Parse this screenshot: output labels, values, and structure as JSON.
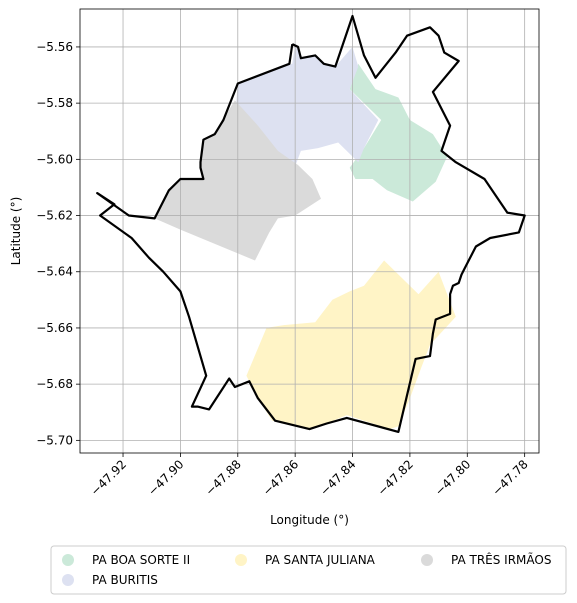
{
  "chart_data": {
    "type": "map",
    "xlabel": "Longitude (°)",
    "ylabel": "Latitude (°)",
    "xlim": [
      -47.935,
      -47.775
    ],
    "ylim": [
      -5.7045,
      -5.5465
    ],
    "xticks": [
      -47.92,
      -47.9,
      -47.88,
      -47.86,
      -47.84,
      -47.82,
      -47.8,
      -47.78
    ],
    "xtick_labels": [
      "−47.92",
      "−47.90",
      "−47.88",
      "−47.86",
      "−47.84",
      "−47.82",
      "−47.80",
      "−47.78"
    ],
    "yticks": [
      -5.56,
      -5.58,
      -5.6,
      -5.62,
      -5.64,
      -5.66,
      -5.68,
      -5.7
    ],
    "ytick_labels": [
      "−5.56",
      "−5.58",
      "−5.60",
      "−5.62",
      "−5.64",
      "−5.66",
      "−5.68",
      "−5.70"
    ],
    "grid": true,
    "legend_position": "bottom",
    "legend": [
      {
        "label": "PA BOA SORTE II",
        "color": "#cbe9d9"
      },
      {
        "label": "PA BURITIS",
        "color": "#dde1f1"
      },
      {
        "label": "PA SANTA JULIANA",
        "color": "#fff4c6"
      },
      {
        "label": "PA TRÊS IRMÃOS",
        "color": "#dadada"
      }
    ],
    "boundary": {
      "name": "municipality outline",
      "color": "#000000",
      "points": [
        [
          -47.861,
          -5.559
        ],
        [
          -47.859,
          -5.56
        ],
        [
          -47.858,
          -5.564
        ],
        [
          -47.853,
          -5.563
        ],
        [
          -47.85,
          -5.566
        ],
        [
          -47.846,
          -5.567
        ],
        [
          -47.84,
          -5.549
        ],
        [
          -47.836,
          -5.563
        ],
        [
          -47.832,
          -5.571
        ],
        [
          -47.825,
          -5.562
        ],
        [
          -47.821,
          -5.556
        ],
        [
          -47.813,
          -5.553
        ],
        [
          -47.81,
          -5.556
        ],
        [
          -47.808,
          -5.562
        ],
        [
          -47.803,
          -5.565
        ],
        [
          -47.812,
          -5.576
        ],
        [
          -47.806,
          -5.588
        ],
        [
          -47.809,
          -5.597
        ],
        [
          -47.804,
          -5.601
        ],
        [
          -47.794,
          -5.607
        ],
        [
          -47.786,
          -5.619
        ],
        [
          -47.78,
          -5.62
        ],
        [
          -47.782,
          -5.626
        ],
        [
          -47.792,
          -5.628
        ],
        [
          -47.797,
          -5.631
        ],
        [
          -47.801,
          -5.639
        ],
        [
          -47.802,
          -5.641
        ],
        [
          -47.803,
          -5.644
        ],
        [
          -47.805,
          -5.645
        ],
        [
          -47.806,
          -5.648
        ],
        [
          -47.806,
          -5.655
        ],
        [
          -47.811,
          -5.657
        ],
        [
          -47.812,
          -5.662
        ],
        [
          -47.813,
          -5.67
        ],
        [
          -47.818,
          -5.671
        ],
        [
          -47.821,
          -5.684
        ],
        [
          -47.824,
          -5.697
        ],
        [
          -47.842,
          -5.692
        ],
        [
          -47.849,
          -5.694
        ],
        [
          -47.855,
          -5.696
        ],
        [
          -47.867,
          -5.693
        ],
        [
          -47.87,
          -5.689
        ],
        [
          -47.873,
          -5.685
        ],
        [
          -47.876,
          -5.679
        ],
        [
          -47.881,
          -5.681
        ],
        [
          -47.883,
          -5.678
        ],
        [
          -47.89,
          -5.689
        ],
        [
          -47.894,
          -5.688
        ],
        [
          -47.896,
          -5.688
        ],
        [
          -47.891,
          -5.677
        ],
        [
          -47.897,
          -5.656
        ],
        [
          -47.9,
          -5.647
        ],
        [
          -47.906,
          -5.64
        ],
        [
          -47.911,
          -5.635
        ],
        [
          -47.917,
          -5.628
        ],
        [
          -47.928,
          -5.62
        ],
        [
          -47.928,
          -5.62
        ],
        [
          -47.923,
          -5.616
        ],
        [
          -47.929,
          -5.612
        ],
        [
          -47.918,
          -5.62
        ],
        [
          -47.909,
          -5.621
        ],
        [
          -47.904,
          -5.611
        ],
        [
          -47.9,
          -5.607
        ],
        [
          -47.892,
          -5.607
        ],
        [
          -47.893,
          -5.603
        ],
        [
          -47.893,
          -5.601
        ],
        [
          -47.892,
          -5.593
        ],
        [
          -47.888,
          -5.591
        ],
        [
          -47.885,
          -5.586
        ],
        [
          -47.88,
          -5.573
        ],
        [
          -47.862,
          -5.566
        ],
        [
          -47.861,
          -5.559
        ]
      ]
    },
    "regions": [
      {
        "name": "PA BOA SORTE II",
        "color": "#cbe9d9",
        "points": [
          [
            -47.838,
            -5.566
          ],
          [
            -47.832,
            -5.575
          ],
          [
            -47.824,
            -5.578
          ],
          [
            -47.82,
            -5.586
          ],
          [
            -47.812,
            -5.591
          ],
          [
            -47.807,
            -5.599
          ],
          [
            -47.811,
            -5.608
          ],
          [
            -47.819,
            -5.615
          ],
          [
            -47.828,
            -5.611
          ],
          [
            -47.833,
            -5.607
          ],
          [
            -47.839,
            -5.607
          ],
          [
            -47.841,
            -5.603
          ],
          [
            -47.836,
            -5.596
          ],
          [
            -47.83,
            -5.586
          ],
          [
            -47.841,
            -5.575
          ],
          [
            -47.838,
            -5.566
          ]
        ]
      },
      {
        "name": "PA BURITIS",
        "color": "#dde1f1",
        "points": [
          [
            -47.86,
            -5.559
          ],
          [
            -47.858,
            -5.564
          ],
          [
            -47.853,
            -5.563
          ],
          [
            -47.85,
            -5.566
          ],
          [
            -47.846,
            -5.567
          ],
          [
            -47.84,
            -5.56
          ],
          [
            -47.838,
            -5.567
          ],
          [
            -47.841,
            -5.575
          ],
          [
            -47.831,
            -5.586
          ],
          [
            -47.836,
            -5.596
          ],
          [
            -47.838,
            -5.601
          ],
          [
            -47.845,
            -5.594
          ],
          [
            -47.852,
            -5.596
          ],
          [
            -47.858,
            -5.597
          ],
          [
            -47.862,
            -5.608
          ],
          [
            -47.869,
            -5.601
          ],
          [
            -47.875,
            -5.593
          ],
          [
            -47.881,
            -5.585
          ],
          [
            -47.88,
            -5.573
          ],
          [
            -47.861,
            -5.566
          ],
          [
            -47.86,
            -5.559
          ]
        ]
      },
      {
        "name": "PA SANTA JULIANA",
        "color": "#fff4c6",
        "points": [
          [
            -47.829,
            -5.636
          ],
          [
            -47.836,
            -5.645
          ],
          [
            -47.841,
            -5.647
          ],
          [
            -47.847,
            -5.65
          ],
          [
            -47.853,
            -5.658
          ],
          [
            -47.864,
            -5.659
          ],
          [
            -47.87,
            -5.66
          ],
          [
            -47.877,
            -5.677
          ],
          [
            -47.873,
            -5.685
          ],
          [
            -47.868,
            -5.693
          ],
          [
            -47.854,
            -5.696
          ],
          [
            -47.842,
            -5.691
          ],
          [
            -47.827,
            -5.696
          ],
          [
            -47.824,
            -5.695
          ],
          [
            -47.82,
            -5.685
          ],
          [
            -47.816,
            -5.674
          ],
          [
            -47.813,
            -5.666
          ],
          [
            -47.804,
            -5.656
          ],
          [
            -47.81,
            -5.64
          ],
          [
            -47.817,
            -5.648
          ],
          [
            -47.829,
            -5.636
          ]
        ]
      },
      {
        "name": "PA TRÊS IRMÃOS",
        "color": "#dadada",
        "points": [
          [
            -47.881,
            -5.579
          ],
          [
            -47.873,
            -5.588
          ],
          [
            -47.866,
            -5.597
          ],
          [
            -47.859,
            -5.602
          ],
          [
            -47.854,
            -5.607
          ],
          [
            -47.851,
            -5.614
          ],
          [
            -47.86,
            -5.62
          ],
          [
            -47.866,
            -5.621
          ],
          [
            -47.869,
            -5.626
          ],
          [
            -47.874,
            -5.636
          ],
          [
            -47.9,
            -5.625
          ],
          [
            -47.909,
            -5.621
          ],
          [
            -47.904,
            -5.611
          ],
          [
            -47.9,
            -5.607
          ],
          [
            -47.892,
            -5.607
          ],
          [
            -47.893,
            -5.603
          ],
          [
            -47.892,
            -5.593
          ],
          [
            -47.888,
            -5.591
          ],
          [
            -47.884,
            -5.584
          ],
          [
            -47.881,
            -5.579
          ]
        ]
      }
    ]
  }
}
